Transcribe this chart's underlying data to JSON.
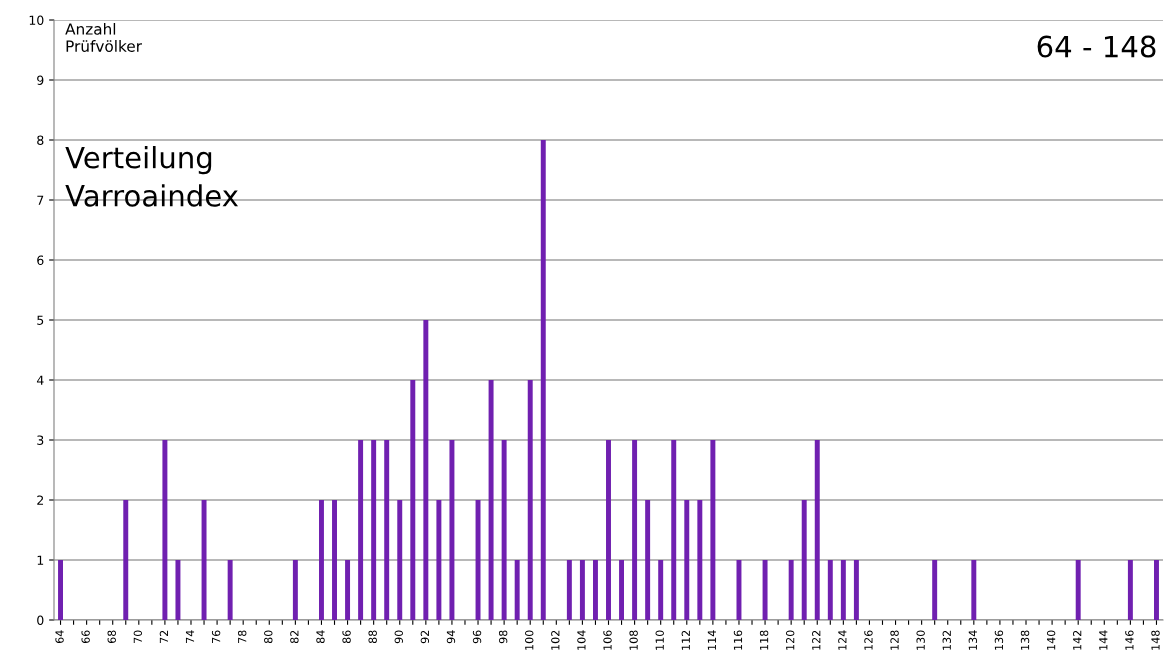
{
  "chart_data": {
    "type": "bar",
    "title": "Verteilung\nVarroaindex",
    "subtitle": "64 - 148",
    "ylabel": "Anzahl\nPrüfvölker",
    "categories": [
      "64",
      null,
      "66",
      null,
      "68",
      null,
      "70",
      null,
      "72",
      null,
      "74",
      null,
      "76",
      null,
      "78",
      null,
      "80",
      null,
      "82",
      null,
      "84",
      null,
      "86",
      null,
      "88",
      null,
      "90",
      null,
      "92",
      null,
      "94",
      null,
      "96",
      null,
      "98",
      null,
      "100",
      null,
      "102",
      null,
      "104",
      null,
      "106",
      null,
      "108",
      null,
      "110",
      null,
      "112",
      null,
      "114",
      null,
      "116",
      null,
      "118",
      null,
      "120",
      null,
      "122",
      null,
      "124",
      null,
      "126",
      null,
      "128",
      null,
      "130",
      null,
      "132",
      null,
      "134",
      null,
      "136",
      null,
      "138",
      null,
      "140",
      null,
      "142",
      null,
      "144",
      null,
      "146",
      null,
      "148"
    ],
    "values": [
      1,
      0,
      0,
      0,
      0,
      2,
      0,
      0,
      3,
      1,
      0,
      2,
      0,
      1,
      0,
      0,
      0,
      0,
      1,
      0,
      2,
      2,
      1,
      3,
      3,
      3,
      2,
      4,
      5,
      2,
      3,
      0,
      2,
      4,
      3,
      1,
      4,
      8,
      0,
      1,
      1,
      1,
      3,
      1,
      3,
      2,
      1,
      3,
      2,
      2,
      3,
      0,
      1,
      0,
      1,
      0,
      1,
      2,
      3,
      1,
      1,
      1,
      0,
      0,
      0,
      0,
      0,
      1,
      0,
      0,
      1,
      0,
      0,
      0,
      0,
      0,
      0,
      0,
      1,
      0,
      0,
      0,
      1,
      0,
      1
    ],
    "color": "#7020b0",
    "ylim": [
      0,
      10
    ],
    "yticks": [
      0,
      1,
      2,
      3,
      4,
      5,
      6,
      7,
      8,
      9,
      10
    ],
    "grid": "y"
  }
}
